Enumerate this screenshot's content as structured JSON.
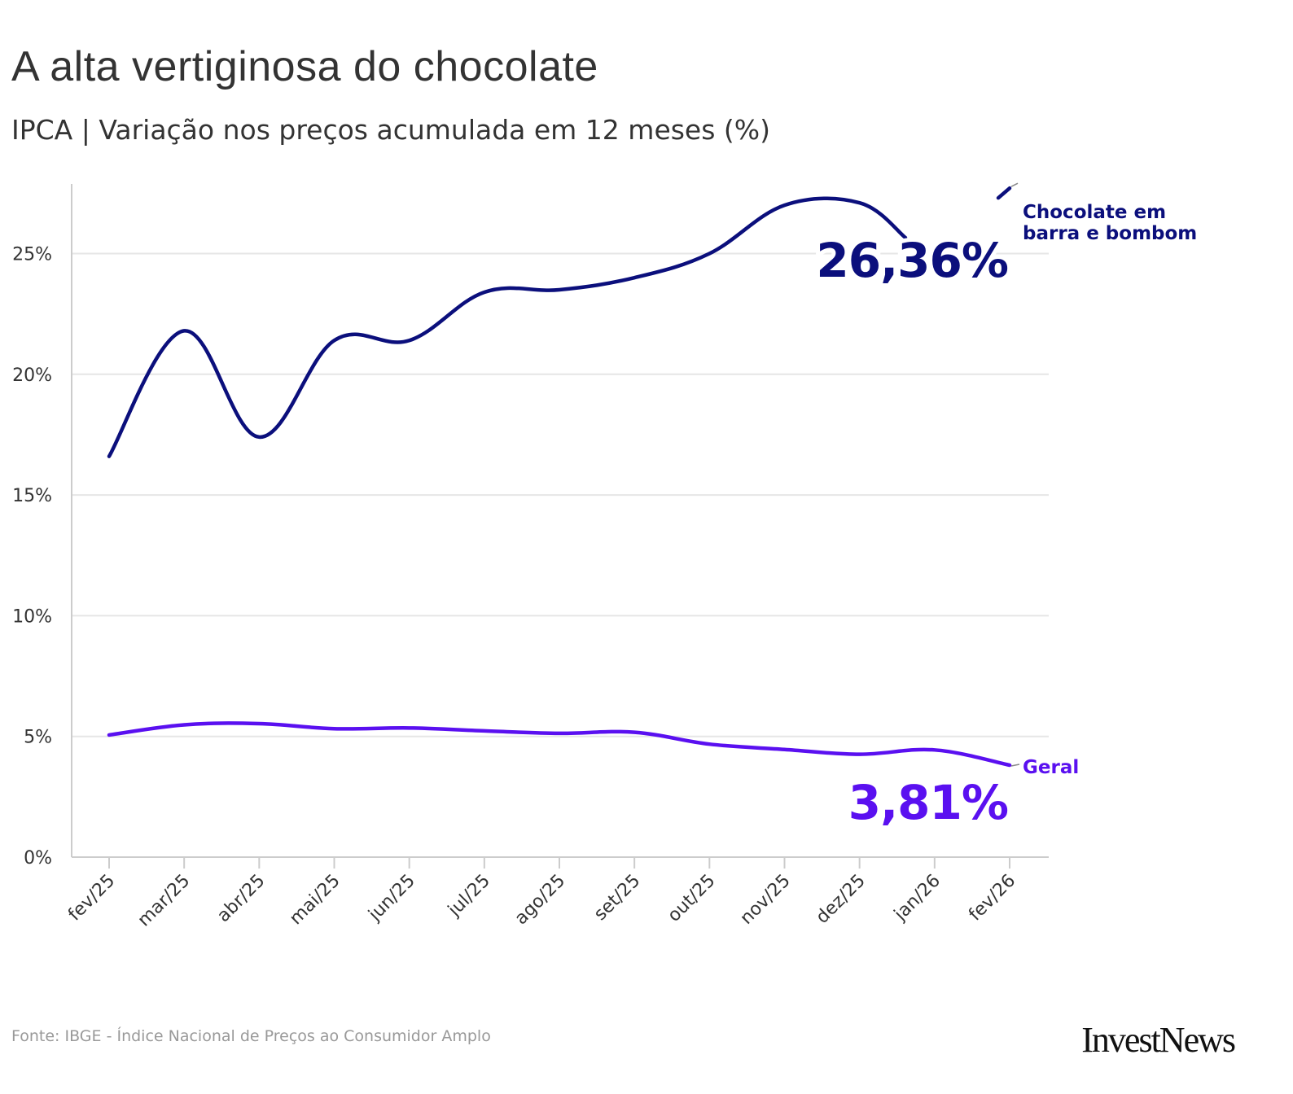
{
  "header": {
    "title": "A alta vertiginosa do chocolate",
    "subtitle": "IPCA | Variação nos preços acumulada em 12 meses (%)"
  },
  "footer": {
    "source": "Fonte: IBGE - Índice Nacional de Preços ao Consumidor Amplo",
    "logo": "InvestNews"
  },
  "colors": {
    "chocolate": "#0b0f7c",
    "geral": "#5a10f0",
    "grid": "#e6e6e6",
    "axis": "#cccccc",
    "tick_text": "#333333"
  },
  "chart_data": {
    "type": "line",
    "categories": [
      "fev/25",
      "mar/25",
      "abr/25",
      "mai/25",
      "jun/25",
      "jul/25",
      "ago/25",
      "set/25",
      "out/25",
      "nov/25",
      "dez/25",
      "jan/26",
      "fev/26"
    ],
    "series": [
      {
        "name": "Chocolate em barra e bombom",
        "label_lines": [
          "Chocolate em",
          "barra e bombom"
        ],
        "values": [
          16.6,
          21.8,
          17.4,
          21.4,
          21.4,
          23.4,
          23.5,
          24.0,
          25.0,
          27.0,
          27.1,
          null,
          26.36
        ],
        "end_label": "26,36%",
        "color": "#0b0f7c"
      },
      {
        "name": "Geral",
        "label_lines": [
          "Geral"
        ],
        "values": [
          5.06,
          5.48,
          5.53,
          5.32,
          5.35,
          5.23,
          5.13,
          5.17,
          4.68,
          4.46,
          4.26,
          4.44,
          3.81
        ],
        "end_label": "3,81%",
        "color": "#5a10f0"
      }
    ],
    "yticks": [
      0,
      5,
      10,
      15,
      20,
      25
    ],
    "ytick_labels": [
      "0%",
      "5%",
      "10%",
      "15%",
      "20%",
      "25%"
    ],
    "ylim": [
      0,
      28
    ],
    "xlabel": "",
    "ylabel": "",
    "grid": true
  }
}
